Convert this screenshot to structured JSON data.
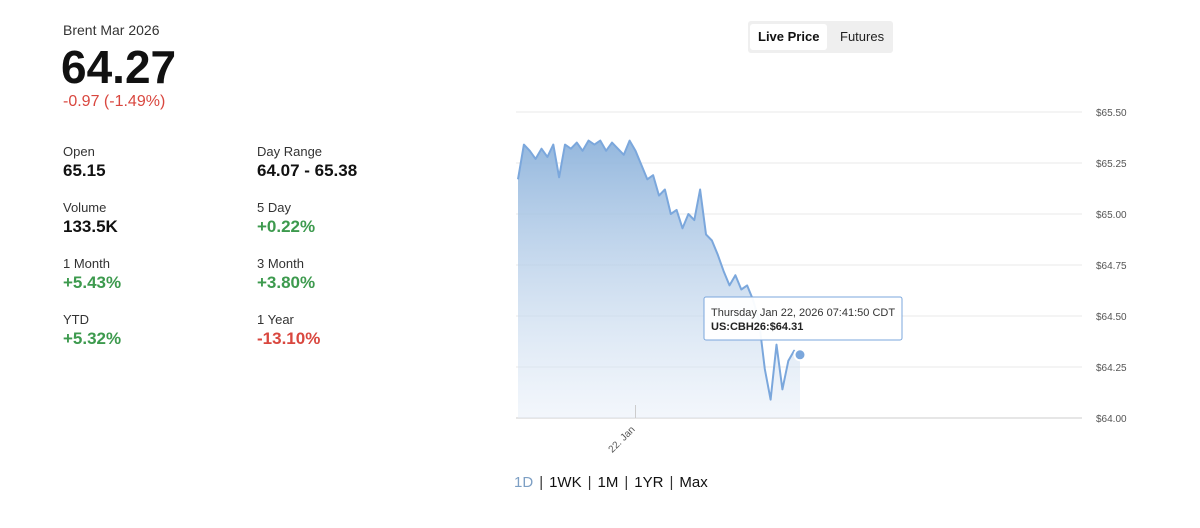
{
  "header": {
    "name": "Brent Mar 2026",
    "price": "64.27",
    "change": "-0.97 (-1.49%)",
    "change_color": "#d9473f"
  },
  "stats": [
    {
      "label": "Open",
      "value": "65.15",
      "color": "#111111"
    },
    {
      "label": "Day Range",
      "value": "64.07 - 65.38",
      "color": "#111111"
    },
    {
      "label": "Volume",
      "value": "133.5K",
      "color": "#111111"
    },
    {
      "label": "5 Day",
      "value": "+0.22%",
      "color": "#3d9a4e"
    },
    {
      "label": "1 Month",
      "value": "+5.43%",
      "color": "#3d9a4e"
    },
    {
      "label": "3 Month",
      "value": "+3.80%",
      "color": "#3d9a4e"
    },
    {
      "label": "YTD",
      "value": "+5.32%",
      "color": "#3d9a4e"
    },
    {
      "label": "1 Year",
      "value": "-13.10%",
      "color": "#d9473f"
    }
  ],
  "toggle": {
    "options": [
      "Live Price",
      "Futures"
    ],
    "active": 0
  },
  "ranges": {
    "options": [
      "1D",
      "1WK",
      "1M",
      "1YR",
      "Max"
    ],
    "active": 0
  },
  "chart_data": {
    "type": "area",
    "color": "#7ba7dc",
    "values": [
      65.17,
      65.34,
      65.31,
      65.27,
      65.32,
      65.28,
      65.34,
      65.18,
      65.34,
      65.32,
      65.35,
      65.31,
      65.36,
      65.34,
      65.36,
      65.31,
      65.35,
      65.32,
      65.29,
      65.36,
      65.31,
      65.24,
      65.17,
      65.19,
      65.09,
      65.12,
      65.0,
      65.02,
      64.93,
      65.0,
      64.97,
      65.12,
      64.9,
      64.87,
      64.8,
      64.72,
      64.65,
      64.7,
      64.63,
      64.65,
      64.58,
      64.48,
      64.24,
      64.09,
      64.36,
      64.14,
      64.28,
      64.33,
      64.31
    ],
    "xlim": [
      0,
      96
    ],
    "xticks": [
      {
        "value": 20,
        "label": "22. Jan"
      }
    ],
    "ylim": [
      64,
      65.5
    ],
    "yticks": [
      {
        "value": 64,
        "label": "$64.00"
      },
      {
        "value": 64.25,
        "label": "$64.25"
      },
      {
        "value": 64.5,
        "label": "$64.50"
      },
      {
        "value": 64.75,
        "label": "$64.75"
      },
      {
        "value": 65,
        "label": "$65.00"
      },
      {
        "value": 65.25,
        "label": "$65.25"
      },
      {
        "value": 65.5,
        "label": "$65.50"
      }
    ],
    "grid": true,
    "tooltip": {
      "time": "Thursday Jan 22, 2026 07:41:50 CDT",
      "symbol": "US:CBH26:",
      "price": "$64.31"
    }
  }
}
